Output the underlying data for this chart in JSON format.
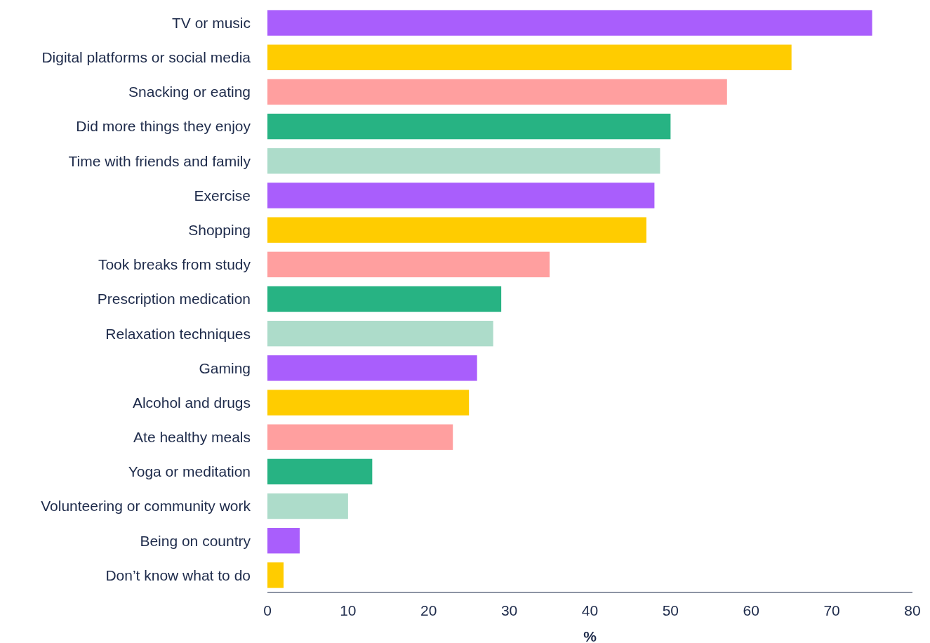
{
  "chart_data": {
    "type": "bar",
    "orientation": "horizontal",
    "xlabel": "%",
    "categories": [
      "TV or music",
      "Digital platforms or social media",
      "Snacking or eating",
      "Did more things they enjoy",
      "Time with friends and family",
      "Exercise",
      "Shopping",
      "Took breaks from study",
      "Prescription medication",
      "Relaxation techniques",
      "Gaming",
      "Alcohol and drugs",
      "Ate healthy meals",
      "Yoga or meditation",
      "Volunteering or community work",
      "Being on country",
      "Don’t know what to do"
    ],
    "values": [
      75,
      65,
      57,
      50,
      48.7,
      48,
      47,
      35,
      29,
      28,
      26,
      25,
      23,
      13,
      10,
      4,
      2
    ],
    "colors": [
      "#a95efc",
      "#ffcc00",
      "#ff9f9f",
      "#27b383",
      "#addcca",
      "#a95efc",
      "#ffcc00",
      "#ff9f9f",
      "#27b383",
      "#addcca",
      "#a95efc",
      "#ffcc00",
      "#ff9f9f",
      "#27b383",
      "#addcca",
      "#a95efc",
      "#ffcc00"
    ],
    "xlim": [
      0,
      80
    ],
    "xticks": [
      0,
      10,
      20,
      30,
      40,
      50,
      60,
      70,
      80
    ],
    "grid": false
  }
}
